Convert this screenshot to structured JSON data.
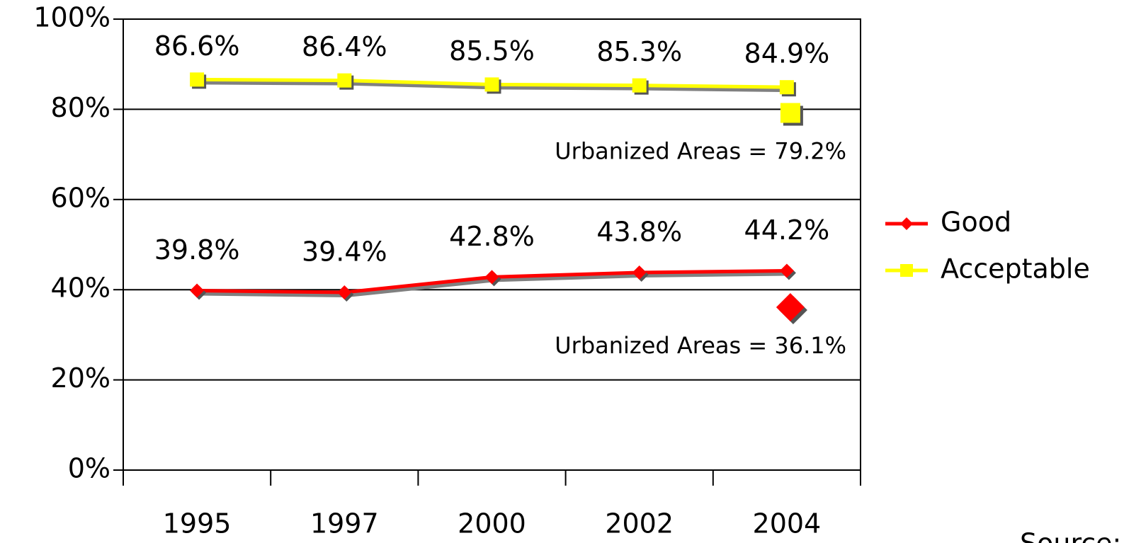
{
  "chart_data": {
    "type": "line",
    "categories": [
      "1995",
      "1997",
      "2000",
      "2002",
      "2004"
    ],
    "series": [
      {
        "name": "Good",
        "color": "#ff0000",
        "marker": "diamond",
        "values": [
          39.8,
          39.4,
          42.8,
          43.8,
          44.2
        ],
        "value_labels": [
          "39.8%",
          "39.4%",
          "42.8%",
          "43.8%",
          "44.2%"
        ],
        "urbanized": {
          "label": "Urbanized Areas = 36.1%",
          "value": 36.1
        }
      },
      {
        "name": "Acceptable",
        "color": "#ffff00",
        "marker": "square",
        "values": [
          86.6,
          86.4,
          85.5,
          85.3,
          84.9
        ],
        "value_labels": [
          "86.6%",
          "86.4%",
          "85.5%",
          "85.3%",
          "84.9%"
        ],
        "urbanized": {
          "label": "Urbanized Areas = 79.2%",
          "value": 79.2
        }
      }
    ],
    "ylim": [
      0,
      100
    ],
    "yticks": [
      {
        "value": 0,
        "label": "0%"
      },
      {
        "value": 20,
        "label": "20%"
      },
      {
        "value": 40,
        "label": "40%"
      },
      {
        "value": 60,
        "label": "60%"
      },
      {
        "value": 80,
        "label": "80%"
      },
      {
        "value": 100,
        "label": "100%"
      }
    ],
    "grid": true,
    "legend": "right",
    "source": "Source: FHWA"
  }
}
